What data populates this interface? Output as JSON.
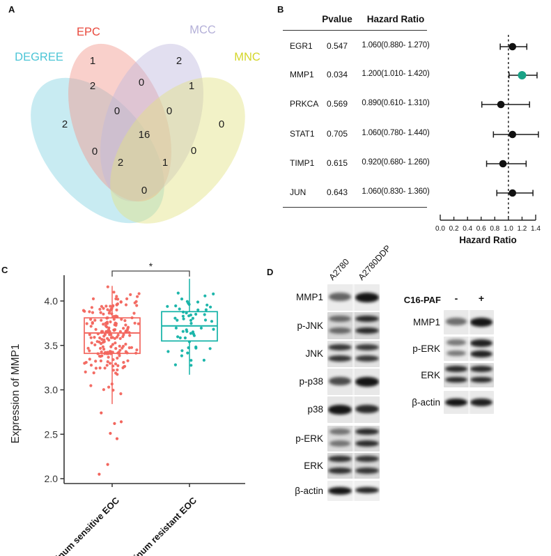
{
  "panels": {
    "a": "A",
    "b": "B",
    "c": "C",
    "d": "D"
  },
  "chart_data": [
    {
      "id": "venn",
      "type": "venn",
      "panel": "A",
      "sets": [
        {
          "name": "DEGREE",
          "label_color": "#4cc5d6",
          "fill": "#85d2e2"
        },
        {
          "name": "EPC",
          "label_color": "#e9493d",
          "fill": "#f2968c"
        },
        {
          "name": "MCC",
          "label_color": "#b4b0d8",
          "fill": "#beb9de"
        },
        {
          "name": "MNC",
          "label_color": "#d4d62a",
          "fill": "#e2e282"
        }
      ],
      "regions": [
        {
          "id": "epc-only",
          "value": 1
        },
        {
          "id": "mcc-only",
          "value": 2
        },
        {
          "id": "degree-only",
          "value": 2
        },
        {
          "id": "mnc-only",
          "value": 0
        },
        {
          "id": "degree-epc",
          "value": 2
        },
        {
          "id": "epc-mcc",
          "value": 0
        },
        {
          "id": "mcc-mnc",
          "value": 1
        },
        {
          "id": "inner-left",
          "value": 0
        },
        {
          "id": "inner-right",
          "value": 0
        },
        {
          "id": "center",
          "value": 16
        },
        {
          "id": "mid-left",
          "value": 0
        },
        {
          "id": "mid-right",
          "value": 0
        },
        {
          "id": "lower-left",
          "value": 2
        },
        {
          "id": "lower-right",
          "value": 1
        },
        {
          "id": "bottom",
          "value": 0
        }
      ]
    },
    {
      "id": "forest",
      "type": "table+forest",
      "panel": "B",
      "columns": [
        "Pvalue",
        "Hazard Ratio"
      ],
      "rows": [
        {
          "gene": "EGR1",
          "pvalue": "0.547",
          "hr_text": "1.060(0.880- 1.270)",
          "hr": 1.06,
          "lo": 0.88,
          "hi": 1.27,
          "highlight": false
        },
        {
          "gene": "MMP1",
          "pvalue": "0.034",
          "hr_text": "1.200(1.010- 1.420)",
          "hr": 1.2,
          "lo": 1.01,
          "hi": 1.42,
          "highlight": true
        },
        {
          "gene": "PRKCA",
          "pvalue": "0.569",
          "hr_text": "0.890(0.610- 1.310)",
          "hr": 0.89,
          "lo": 0.61,
          "hi": 1.31,
          "highlight": false
        },
        {
          "gene": "STAT1",
          "pvalue": "0.705",
          "hr_text": "1.060(0.780- 1.440)",
          "hr": 1.06,
          "lo": 0.78,
          "hi": 1.44,
          "highlight": false
        },
        {
          "gene": "TIMP1",
          "pvalue": "0.615",
          "hr_text": "0.920(0.680- 1.260)",
          "hr": 0.92,
          "lo": 0.68,
          "hi": 1.26,
          "highlight": false
        },
        {
          "gene": "JUN",
          "pvalue": "0.643",
          "hr_text": "1.060(0.830- 1.360)",
          "hr": 1.06,
          "lo": 0.83,
          "hi": 1.36,
          "highlight": false
        }
      ],
      "xlabel": "Hazard Ratio",
      "x_ticks": [
        "0.0",
        "0.2",
        "0.4",
        "0.6",
        "0.8",
        "1.0",
        "1.2",
        "1.4"
      ],
      "xlim": [
        0.0,
        1.4
      ],
      "ref_line": 1.0,
      "point_color": "#111111",
      "highlight_color": "#1aa286"
    },
    {
      "id": "boxplot",
      "type": "box+jitter",
      "panel": "C",
      "ylabel": "Expression of MMP1",
      "y_ticks": [
        "2.0",
        "2.5",
        "3.0",
        "3.5",
        "4.0"
      ],
      "ylim": [
        1.95,
        4.35
      ],
      "significance": "*",
      "groups": [
        {
          "label": "Platinum sensitive  EOC",
          "color": "#f2655d",
          "n_points": 200,
          "median": 3.64,
          "q1": 3.41,
          "q3": 3.81,
          "whisker_low": 2.84,
          "whisker_high": 4.17,
          "center": 3.63,
          "spread_sd": 0.27,
          "outliers": [
            2.05,
            2.16,
            2.45,
            2.51,
            2.62,
            2.64,
            2.74
          ]
        },
        {
          "label": "Platinum resistant EOC",
          "color": "#12b2a7",
          "n_points": 56,
          "median": 3.72,
          "q1": 3.55,
          "q3": 3.88,
          "whisker_low": 3.17,
          "whisker_high": 4.25,
          "center": 3.7,
          "spread_sd": 0.23,
          "outliers": []
        }
      ]
    }
  ],
  "panel_d": {
    "left_blot": {
      "lane_labels": [
        "A2780",
        "A2780DDP"
      ],
      "rows": [
        {
          "label": "MMP1",
          "pattern": "single",
          "lanes": [
            0.6,
            0.95
          ],
          "bg": "#ececec"
        },
        {
          "label": "p-JNK",
          "pattern": "doublet",
          "lanes": [
            0.55,
            0.85
          ],
          "bg": "#d7d7d7"
        },
        {
          "label": "JNK",
          "pattern": "doublet",
          "lanes": [
            0.8,
            0.78
          ],
          "bg": "#e2e2e2"
        },
        {
          "label": "p-p38",
          "pattern": "single",
          "lanes": [
            0.7,
            0.95
          ],
          "bg": "#e8e8e8"
        },
        {
          "label": "p38",
          "pattern": "single",
          "lanes": [
            0.95,
            0.85
          ],
          "bg": "#e5e5e5"
        },
        {
          "label": "p-ERK",
          "pattern": "doublet",
          "lanes": [
            0.5,
            0.85
          ],
          "bg": "#dcdcdc"
        },
        {
          "label": "ERK",
          "pattern": "doublet",
          "lanes": [
            0.82,
            0.8
          ],
          "bg": "#d8d8d8"
        },
        {
          "label": "β-actin",
          "pattern": "single",
          "lanes": [
            0.95,
            0.88
          ],
          "bg": "#efefef"
        }
      ]
    },
    "right_blot": {
      "treatment_label": "C16-PAF",
      "lane_labels": [
        "-",
        "+"
      ],
      "rows": [
        {
          "label": "MMP1",
          "pattern": "single",
          "lanes": [
            0.55,
            0.95
          ],
          "bg": "#e9e9e9"
        },
        {
          "label": "p-ERK",
          "pattern": "doublet",
          "lanes": [
            0.5,
            0.9
          ],
          "bg": "#e9e9e9"
        },
        {
          "label": "ERK",
          "pattern": "doublet",
          "lanes": [
            0.85,
            0.85
          ],
          "bg": "#dcdcdc"
        },
        {
          "label": "β-actin",
          "pattern": "single",
          "lanes": [
            0.95,
            0.9
          ],
          "bg": "#eaeaea"
        }
      ]
    }
  }
}
